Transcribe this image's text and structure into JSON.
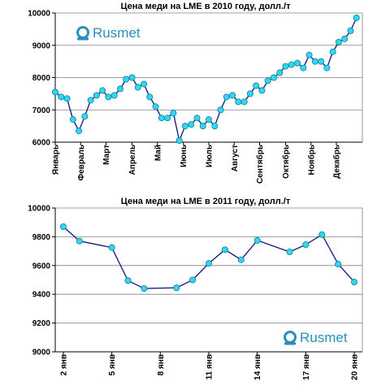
{
  "colors": {
    "line": "#1a237e",
    "marker": "#33d6f0",
    "marker_edge": "#0b7fa0",
    "grid": "#808080",
    "logo": "#2a8fbf"
  },
  "icons": {
    "logo": "rusmet-logo-icon"
  },
  "chart_data": [
    {
      "type": "line",
      "title": "Цена меди на LME в 2010 году, долл./т",
      "logo_text": "Rusmet",
      "ylim": [
        6000,
        10000
      ],
      "yticks": [
        6000,
        7000,
        8000,
        9000,
        10000
      ],
      "ytick_labels": [
        "6000",
        "7000",
        "8000",
        "9000",
        "10000"
      ],
      "grid": "horizontal",
      "x_range": [
        0,
        52
      ],
      "month_ticks": [
        {
          "label": "Январь",
          "x": 0
        },
        {
          "label": "Февраль",
          "x": 4.3
        },
        {
          "label": "Март",
          "x": 8.6
        },
        {
          "label": "Апрель",
          "x": 13
        },
        {
          "label": "Май",
          "x": 17.3
        },
        {
          "label": "Июнь",
          "x": 21.7
        },
        {
          "label": "Июль",
          "x": 26
        },
        {
          "label": "Август",
          "x": 30.3
        },
        {
          "label": "Сентябрь",
          "x": 34.6
        },
        {
          "label": "Октябрь",
          "x": 39
        },
        {
          "label": "Ноябрь",
          "x": 43.3
        },
        {
          "label": "Декабрь",
          "x": 47.6
        }
      ],
      "values": [
        7550,
        7400,
        7350,
        6700,
        6350,
        6800,
        7300,
        7450,
        7600,
        7400,
        7450,
        7650,
        7950,
        8000,
        7700,
        7800,
        7400,
        7100,
        6750,
        6750,
        6900,
        6050,
        6500,
        6550,
        6750,
        6500,
        6700,
        6500,
        7000,
        7400,
        7450,
        7250,
        7250,
        7500,
        7750,
        7600,
        7900,
        8000,
        8150,
        8350,
        8400,
        8450,
        8300,
        8700,
        8500,
        8500,
        8300,
        8800,
        9100,
        9200,
        9450,
        9850
      ]
    },
    {
      "type": "line",
      "title": "Цена меди на LME в 2011 году, долл./т",
      "logo_text": "Rusmet",
      "ylim": [
        9000,
        10000
      ],
      "yticks": [
        9000,
        9200,
        9400,
        9600,
        9800,
        10000
      ],
      "ytick_labels": [
        "9000",
        "9200",
        "9400",
        "9600",
        "9800",
        "10000"
      ],
      "grid": "horizontal",
      "x_range": [
        1.5,
        20.5
      ],
      "x_ticks": [
        {
          "label": "2 янв",
          "x": 2
        },
        {
          "label": "5 янв",
          "x": 5
        },
        {
          "label": "8 янв",
          "x": 8
        },
        {
          "label": "11 янв",
          "x": 11
        },
        {
          "label": "14 янв",
          "x": 14
        },
        {
          "label": "17 янв",
          "x": 17
        },
        {
          "label": "20 янв",
          "x": 20
        }
      ],
      "x": [
        2,
        3,
        5,
        6,
        7,
        9,
        10,
        11,
        12,
        13,
        14,
        16,
        17,
        18,
        19,
        20
      ],
      "values": [
        9870,
        9770,
        9725,
        9495,
        9440,
        9445,
        9500,
        9615,
        9710,
        9640,
        9775,
        9695,
        9745,
        9815,
        9610,
        9485
      ]
    }
  ]
}
